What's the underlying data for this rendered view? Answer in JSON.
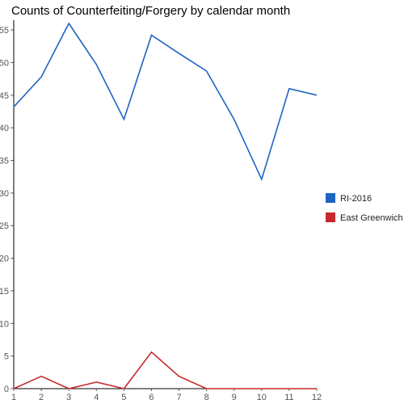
{
  "chart_data": {
    "type": "line",
    "title": "Counts of Counterfeiting/Forgery by calendar month",
    "xlabel": "",
    "ylabel": "",
    "x": [
      1,
      2,
      3,
      4,
      5,
      6,
      7,
      8,
      9,
      10,
      11,
      12
    ],
    "xlim": [
      1,
      12
    ],
    "ylim": [
      0,
      56
    ],
    "yticks": [
      0,
      5,
      10,
      15,
      20,
      25,
      30,
      35,
      40,
      45,
      50,
      55
    ],
    "grid": false,
    "legend_position": "right",
    "series": [
      {
        "name": "RI-2016",
        "color": "#1c64c4",
        "values": [
          43.2,
          47.8,
          56.0,
          49.7,
          41.3,
          54.2,
          51.4,
          48.7,
          41.3,
          32.1,
          46.0,
          45.0
        ]
      },
      {
        "name": "East Greenwich",
        "color": "#c8282c",
        "values": [
          0,
          1.9,
          0,
          1.0,
          0,
          5.6,
          1.9,
          0,
          0,
          0,
          0,
          0
        ]
      }
    ]
  }
}
